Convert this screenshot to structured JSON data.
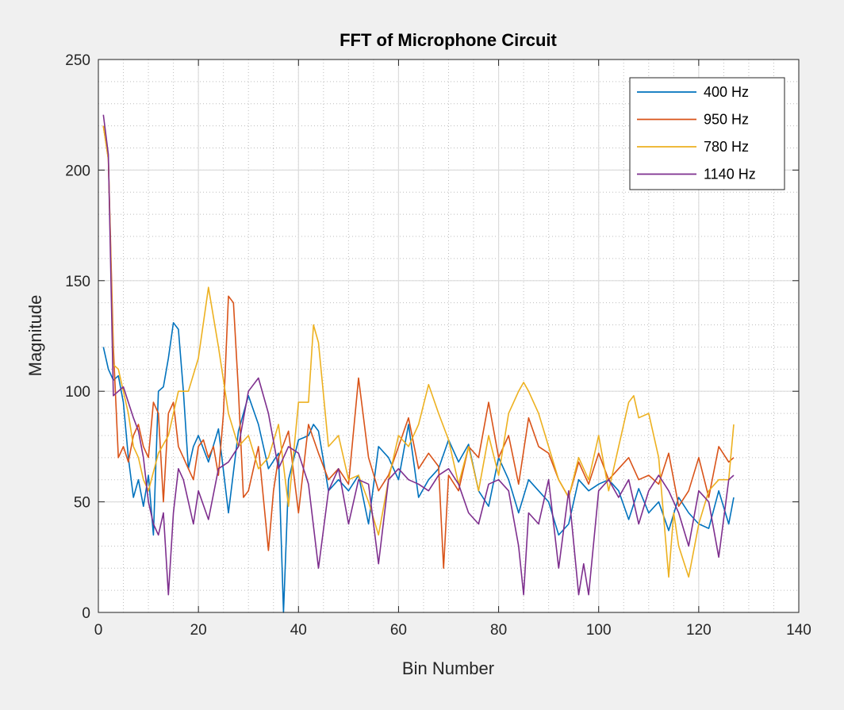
{
  "chart_data": {
    "type": "line",
    "title": "FFT of Microphone Circuit",
    "xlabel": "Bin Number",
    "ylabel": "Magnitude",
    "xlim": [
      0,
      140
    ],
    "ylim": [
      0,
      250
    ],
    "xticks": [
      0,
      20,
      40,
      60,
      80,
      100,
      120,
      140
    ],
    "yticks": [
      0,
      50,
      100,
      150,
      200,
      250
    ],
    "grid": "major and minor",
    "legend_position": "top-right",
    "series": [
      {
        "name": "400 Hz",
        "color": "#0072BD",
        "x": [
          1,
          2,
          3,
          4,
          5,
          6,
          7,
          8,
          9,
          10,
          11,
          12,
          13,
          14,
          15,
          16,
          17,
          18,
          19,
          20,
          22,
          24,
          26,
          28,
          30,
          32,
          34,
          36,
          37,
          38,
          40,
          42,
          43,
          44,
          46,
          48,
          50,
          52,
          54,
          56,
          58,
          60,
          62,
          64,
          66,
          68,
          70,
          72,
          74,
          76,
          78,
          80,
          82,
          84,
          86,
          88,
          90,
          92,
          94,
          96,
          98,
          100,
          102,
          104,
          106,
          108,
          110,
          112,
          114,
          116,
          118,
          120,
          122,
          124,
          126,
          127
        ],
        "values": [
          120,
          110,
          105,
          107,
          95,
          70,
          52,
          60,
          48,
          62,
          35,
          100,
          102,
          115,
          131,
          128,
          100,
          65,
          75,
          80,
          68,
          83,
          45,
          82,
          98,
          85,
          65,
          72,
          0,
          60,
          78,
          80,
          85,
          82,
          55,
          60,
          55,
          62,
          40,
          75,
          70,
          60,
          85,
          52,
          60,
          65,
          78,
          68,
          76,
          55,
          48,
          70,
          60,
          45,
          60,
          55,
          50,
          35,
          40,
          60,
          55,
          58,
          60,
          55,
          42,
          56,
          45,
          50,
          37,
          52,
          45,
          40,
          38,
          55,
          40,
          52
        ]
      },
      {
        "name": "950 Hz",
        "color": "#D95319",
        "x": [
          1,
          2,
          3,
          4,
          5,
          6,
          7,
          8,
          9,
          10,
          11,
          12,
          13,
          14,
          15,
          16,
          17,
          18,
          19,
          20,
          21,
          22,
          23,
          24,
          25,
          26,
          27,
          28,
          29,
          30,
          32,
          34,
          35,
          36,
          38,
          40,
          42,
          44,
          46,
          48,
          50,
          52,
          54,
          56,
          58,
          60,
          62,
          64,
          66,
          68,
          69,
          70,
          72,
          74,
          76,
          78,
          80,
          82,
          84,
          86,
          88,
          90,
          92,
          94,
          96,
          98,
          100,
          102,
          104,
          106,
          108,
          110,
          112,
          114,
          116,
          118,
          120,
          122,
          124,
          126,
          127
        ],
        "values": [
          220,
          205,
          120,
          70,
          75,
          68,
          80,
          85,
          75,
          70,
          95,
          90,
          50,
          90,
          95,
          75,
          70,
          65,
          60,
          75,
          78,
          70,
          75,
          62,
          90,
          143,
          140,
          100,
          52,
          55,
          75,
          28,
          55,
          70,
          82,
          45,
          85,
          72,
          60,
          65,
          58,
          106,
          70,
          55,
          62,
          75,
          88,
          65,
          72,
          66,
          20,
          62,
          55,
          75,
          70,
          95,
          70,
          80,
          58,
          88,
          75,
          72,
          60,
          52,
          68,
          58,
          72,
          60,
          65,
          70,
          60,
          62,
          58,
          72,
          48,
          55,
          70,
          52,
          75,
          68,
          70
        ]
      },
      {
        "name": "780 Hz",
        "color": "#EDB120",
        "x": [
          1,
          2,
          3,
          4,
          5,
          6,
          7,
          8,
          9,
          10,
          12,
          14,
          16,
          18,
          20,
          22,
          24,
          26,
          28,
          30,
          32,
          34,
          36,
          38,
          40,
          42,
          43,
          44,
          46,
          48,
          50,
          52,
          54,
          56,
          58,
          60,
          62,
          64,
          66,
          68,
          70,
          72,
          74,
          76,
          78,
          80,
          82,
          84,
          85,
          86,
          88,
          90,
          92,
          94,
          96,
          98,
          100,
          102,
          104,
          106,
          107,
          108,
          110,
          112,
          114,
          115,
          116,
          118,
          120,
          122,
          124,
          126,
          127
        ],
        "values": [
          220,
          205,
          112,
          110,
          100,
          90,
          75,
          70,
          60,
          55,
          72,
          80,
          100,
          100,
          115,
          147,
          120,
          90,
          75,
          80,
          65,
          70,
          85,
          48,
          95,
          95,
          130,
          122,
          75,
          80,
          60,
          62,
          50,
          35,
          60,
          80,
          75,
          85,
          103,
          90,
          78,
          58,
          75,
          55,
          80,
          62,
          90,
          100,
          104,
          100,
          90,
          75,
          60,
          52,
          70,
          60,
          80,
          55,
          75,
          95,
          98,
          88,
          90,
          70,
          16,
          45,
          30,
          16,
          40,
          55,
          60,
          60,
          85
        ]
      },
      {
        "name": "1140 Hz",
        "color": "#7E2F8E",
        "x": [
          1,
          2,
          3,
          4,
          5,
          6,
          7,
          8,
          9,
          10,
          11,
          12,
          13,
          14,
          15,
          16,
          17,
          18,
          19,
          20,
          22,
          24,
          26,
          28,
          30,
          32,
          34,
          36,
          38,
          40,
          42,
          44,
          46,
          48,
          50,
          52,
          54,
          56,
          58,
          60,
          62,
          64,
          66,
          68,
          70,
          72,
          74,
          76,
          78,
          80,
          82,
          84,
          85,
          86,
          88,
          90,
          92,
          94,
          96,
          97,
          98,
          100,
          102,
          104,
          106,
          108,
          110,
          112,
          114,
          116,
          118,
          120,
          122,
          124,
          126,
          127
        ],
        "values": [
          225,
          207,
          98,
          100,
          102,
          95,
          88,
          82,
          70,
          50,
          40,
          35,
          45,
          8,
          45,
          65,
          60,
          50,
          40,
          55,
          42,
          65,
          68,
          75,
          100,
          106,
          90,
          65,
          75,
          72,
          58,
          20,
          55,
          65,
          40,
          60,
          58,
          22,
          60,
          65,
          60,
          58,
          55,
          62,
          65,
          58,
          45,
          40,
          58,
          60,
          55,
          30,
          8,
          45,
          40,
          60,
          20,
          55,
          8,
          22,
          8,
          55,
          60,
          52,
          60,
          40,
          55,
          62,
          55,
          45,
          30,
          55,
          50,
          25,
          60,
          62
        ]
      }
    ]
  }
}
